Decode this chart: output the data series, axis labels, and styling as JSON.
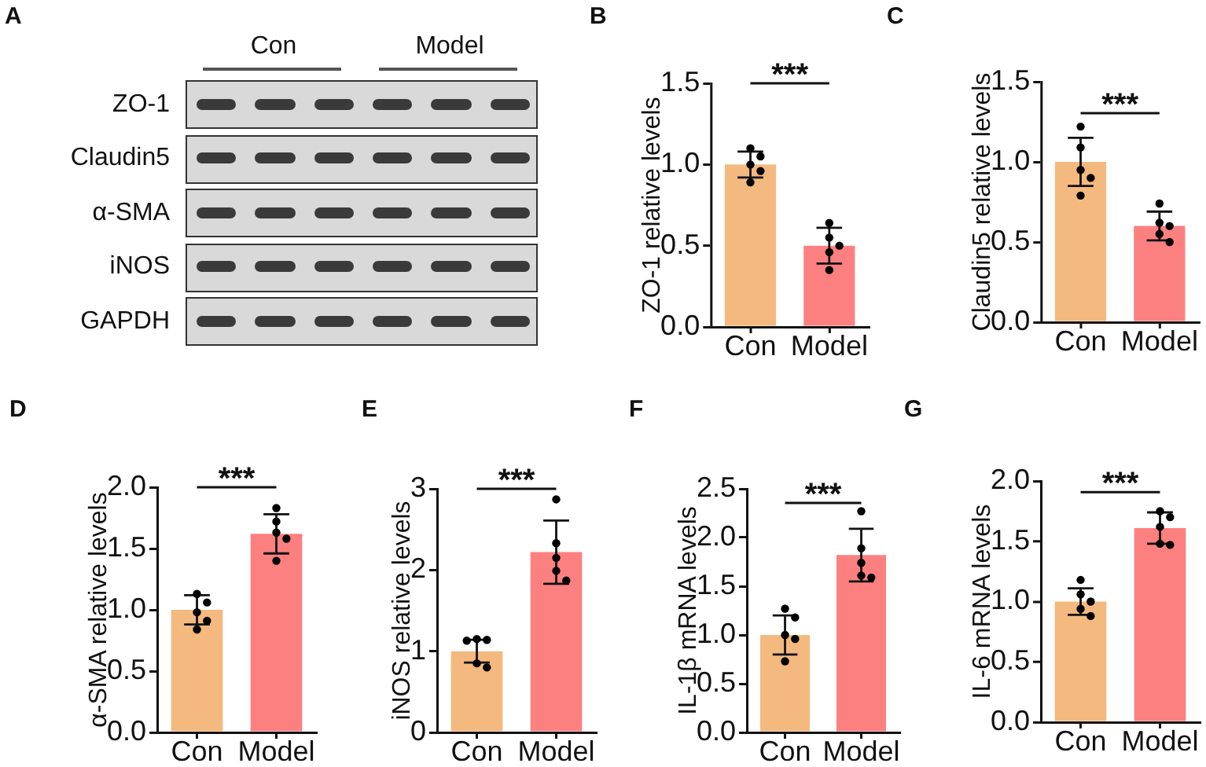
{
  "chart_data": [
    {
      "type": "other",
      "title": "A",
      "categories": [
        "Con",
        "Model"
      ],
      "y_categories": [
        "ZO-1",
        "Claudin5",
        "α-SMA",
        "iNOS",
        "GAPDH"
      ]
    },
    {
      "type": "bar",
      "title": "B",
      "ylabel": "ZO-1 relative levels",
      "categories": [
        "Con",
        "Model"
      ],
      "series": [
        {
          "type": "bar",
          "colors": [
            "#f4b97e",
            "#fd8080"
          ],
          "values": [
            1.0,
            0.5
          ],
          "errors": [
            0.08,
            0.11
          ]
        },
        {
          "type": "scatter",
          "color": "#000000",
          "marker": "circle",
          "x": [
            "Con",
            "Con",
            "Con",
            "Con",
            "Con",
            "Model",
            "Model",
            "Model",
            "Model",
            "Model"
          ],
          "values": [
            1.1,
            1.05,
            1.0,
            0.96,
            0.89,
            0.64,
            0.55,
            0.5,
            0.46,
            0.35
          ]
        }
      ],
      "ylim": [
        0,
        1.5
      ],
      "yticks": [
        {
          "value": 0,
          "label": "0.0"
        },
        {
          "value": 0.5,
          "label": "0.5"
        },
        {
          "value": 1,
          "label": "1.0"
        },
        {
          "value": 1.5,
          "label": "1.5"
        }
      ],
      "annotations": [
        "***"
      ]
    },
    {
      "type": "bar",
      "title": "C",
      "ylabel": "Claudin5 relative levels",
      "categories": [
        "Con",
        "Model"
      ],
      "series": [
        {
          "type": "bar",
          "colors": [
            "#f4b97e",
            "#fd8080"
          ],
          "values": [
            1.0,
            0.6
          ],
          "errors": [
            0.15,
            0.09
          ]
        },
        {
          "type": "scatter",
          "color": "#000000",
          "marker": "circle",
          "x": [
            "Con",
            "Con",
            "Con",
            "Con",
            "Con",
            "Model",
            "Model",
            "Model",
            "Model",
            "Model"
          ],
          "values": [
            1.22,
            1.09,
            0.95,
            0.9,
            0.79,
            0.74,
            0.62,
            0.6,
            0.55,
            0.5
          ]
        }
      ],
      "ylim": [
        0,
        1.5
      ],
      "yticks": [
        {
          "value": 0,
          "label": "0.0"
        },
        {
          "value": 0.5,
          "label": "0.5"
        },
        {
          "value": 1,
          "label": "1.0"
        },
        {
          "value": 1.5,
          "label": "1.5"
        }
      ],
      "annotations": [
        "***"
      ]
    },
    {
      "type": "bar",
      "title": "D",
      "ylabel": "α-SMA relative levels",
      "categories": [
        "Con",
        "Model"
      ],
      "series": [
        {
          "type": "bar",
          "colors": [
            "#f4b97e",
            "#fd8080"
          ],
          "values": [
            1.0,
            1.62
          ],
          "errors": [
            0.12,
            0.16
          ]
        },
        {
          "type": "scatter",
          "color": "#000000",
          "marker": "circle",
          "x": [
            "Con",
            "Con",
            "Con",
            "Con",
            "Con",
            "Model",
            "Model",
            "Model",
            "Model",
            "Model"
          ],
          "values": [
            1.13,
            1.06,
            0.98,
            0.91,
            0.84,
            1.83,
            1.72,
            1.63,
            1.58,
            1.4
          ]
        }
      ],
      "ylim": [
        0,
        2
      ],
      "yticks": [
        {
          "value": 0,
          "label": "0.0"
        },
        {
          "value": 0.5,
          "label": "0.5"
        },
        {
          "value": 1,
          "label": "1.0"
        },
        {
          "value": 1.5,
          "label": "1.5"
        },
        {
          "value": 2,
          "label": "2.0"
        }
      ],
      "annotations": [
        "***"
      ]
    },
    {
      "type": "bar",
      "title": "E",
      "ylabel": "iNOS relative levels",
      "categories": [
        "Con",
        "Model"
      ],
      "series": [
        {
          "type": "bar",
          "colors": [
            "#f4b97e",
            "#fd8080"
          ],
          "values": [
            1.0,
            2.22
          ],
          "errors": [
            0.14,
            0.39
          ]
        },
        {
          "type": "scatter",
          "color": "#000000",
          "marker": "circle",
          "x": [
            "Con",
            "Con",
            "Con",
            "Con",
            "Con",
            "Model",
            "Model",
            "Model",
            "Model",
            "Model"
          ],
          "values": [
            1.15,
            1.14,
            1.13,
            0.85,
            0.8,
            2.87,
            2.33,
            2.15,
            1.99,
            1.87
          ]
        }
      ],
      "ylim": [
        0,
        3
      ],
      "yticks": [
        0,
        1,
        2,
        3
      ],
      "annotations": [
        "***"
      ]
    },
    {
      "type": "bar",
      "title": "F",
      "ylabel": "IL-1β mRNA levels",
      "categories": [
        "Con",
        "Model"
      ],
      "series": [
        {
          "type": "bar",
          "colors": [
            "#f4b97e",
            "#fd8080"
          ],
          "values": [
            1.0,
            1.82
          ],
          "errors": [
            0.2,
            0.27
          ]
        },
        {
          "type": "scatter",
          "color": "#000000",
          "marker": "circle",
          "x": [
            "Con",
            "Con",
            "Con",
            "Con",
            "Con",
            "Model",
            "Model",
            "Model",
            "Model",
            "Model"
          ],
          "values": [
            1.27,
            1.18,
            1.0,
            0.96,
            0.73,
            2.27,
            1.89,
            1.74,
            1.61,
            1.59
          ]
        }
      ],
      "ylim": [
        0,
        2.5
      ],
      "yticks": [
        {
          "value": 0,
          "label": "0.0"
        },
        {
          "value": 0.5,
          "label": "0.5"
        },
        {
          "value": 1,
          "label": "1.0"
        },
        {
          "value": 1.5,
          "label": "1.5"
        },
        {
          "value": 2,
          "label": "2.0"
        },
        {
          "value": 2.5,
          "label": "2.5"
        }
      ],
      "annotations": [
        "***"
      ]
    },
    {
      "type": "bar",
      "title": "G",
      "ylabel": "IL-6 mRNA levels",
      "categories": [
        "Con",
        "Model"
      ],
      "series": [
        {
          "type": "bar",
          "colors": [
            "#f4b97e",
            "#fd8080"
          ],
          "values": [
            1.0,
            1.61
          ],
          "errors": [
            0.11,
            0.13
          ]
        },
        {
          "type": "scatter",
          "color": "#000000",
          "marker": "circle",
          "x": [
            "Con",
            "Con",
            "Con",
            "Con",
            "Con",
            "Model",
            "Model",
            "Model",
            "Model",
            "Model"
          ],
          "values": [
            1.18,
            1.06,
            1.0,
            0.94,
            0.88,
            1.75,
            1.7,
            1.62,
            1.48,
            1.47
          ]
        }
      ],
      "ylim": [
        0,
        2
      ],
      "yticks": [
        {
          "value": 0,
          "label": "0.0"
        },
        {
          "value": 0.5,
          "label": "0.5"
        },
        {
          "value": 1,
          "label": "1.0"
        },
        {
          "value": 1.5,
          "label": "1.5"
        },
        {
          "value": 2,
          "label": "2.0"
        }
      ],
      "annotations": [
        "***"
      ]
    }
  ]
}
